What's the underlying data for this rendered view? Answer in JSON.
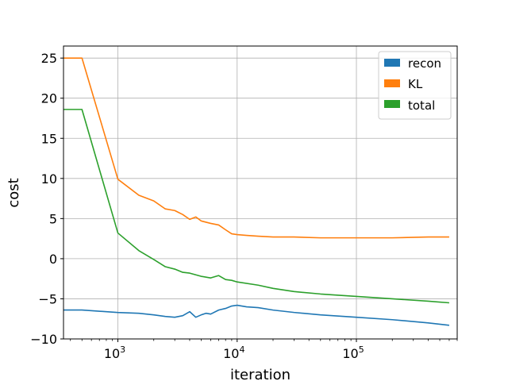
{
  "chart_data": {
    "type": "line",
    "title": "",
    "xlabel": "iteration",
    "ylabel": "cost",
    "xscale": "log",
    "xlim": [
      350,
      700000
    ],
    "ylim": [
      -10,
      26.5
    ],
    "grid": true,
    "legend_position": "top-right",
    "x_ticks": [
      {
        "value": 1000,
        "base": "10",
        "exp": "3"
      },
      {
        "value": 10000,
        "base": "10",
        "exp": "4"
      },
      {
        "value": 100000,
        "base": "10",
        "exp": "5"
      }
    ],
    "y_ticks": [
      {
        "value": -10,
        "label": "−10"
      },
      {
        "value": -5,
        "label": "−5"
      },
      {
        "value": 0,
        "label": "0"
      },
      {
        "value": 5,
        "label": "5"
      },
      {
        "value": 10,
        "label": "10"
      },
      {
        "value": 15,
        "label": "15"
      },
      {
        "value": 20,
        "label": "20"
      },
      {
        "value": 25,
        "label": "25"
      }
    ],
    "series": [
      {
        "name": "recon",
        "color": "#1f77b4",
        "x": [
          350,
          500,
          1000,
          1500,
          2000,
          2500,
          3000,
          3500,
          4000,
          4500,
          5000,
          5500,
          6000,
          7000,
          8000,
          9000,
          10000,
          12000,
          15000,
          20000,
          30000,
          50000,
          100000,
          200000,
          400000,
          600000
        ],
        "y": [
          -6.4,
          -6.4,
          -6.7,
          -6.8,
          -7.0,
          -7.2,
          -7.3,
          -7.1,
          -6.6,
          -7.3,
          -7.0,
          -6.8,
          -6.9,
          -6.4,
          -6.2,
          -5.9,
          -5.8,
          -6.0,
          -6.1,
          -6.4,
          -6.7,
          -7.0,
          -7.3,
          -7.6,
          -8.0,
          -8.3
        ]
      },
      {
        "name": "KL",
        "color": "#ff7f0e",
        "x": [
          350,
          500,
          1000,
          1500,
          2000,
          2500,
          3000,
          3500,
          4000,
          4500,
          5000,
          6000,
          7000,
          8000,
          9000,
          10000,
          12000,
          15000,
          20000,
          30000,
          50000,
          100000,
          200000,
          400000,
          600000
        ],
        "y": [
          25.0,
          25.0,
          9.9,
          7.9,
          7.2,
          6.2,
          6.0,
          5.5,
          4.9,
          5.2,
          4.7,
          4.4,
          4.2,
          3.6,
          3.1,
          3.0,
          2.9,
          2.8,
          2.7,
          2.7,
          2.6,
          2.6,
          2.6,
          2.7,
          2.7
        ]
      },
      {
        "name": "total",
        "color": "#2ca02c",
        "x": [
          350,
          500,
          1000,
          1500,
          2000,
          2500,
          3000,
          3500,
          4000,
          5000,
          6000,
          7000,
          8000,
          9000,
          10000,
          15000,
          20000,
          30000,
          50000,
          100000,
          200000,
          400000,
          600000
        ],
        "y": [
          18.6,
          18.6,
          3.2,
          1.0,
          -0.1,
          -1.0,
          -1.3,
          -1.7,
          -1.8,
          -2.2,
          -2.4,
          -2.1,
          -2.6,
          -2.7,
          -2.9,
          -3.3,
          -3.7,
          -4.1,
          -4.4,
          -4.7,
          -5.0,
          -5.3,
          -5.5
        ]
      }
    ]
  }
}
